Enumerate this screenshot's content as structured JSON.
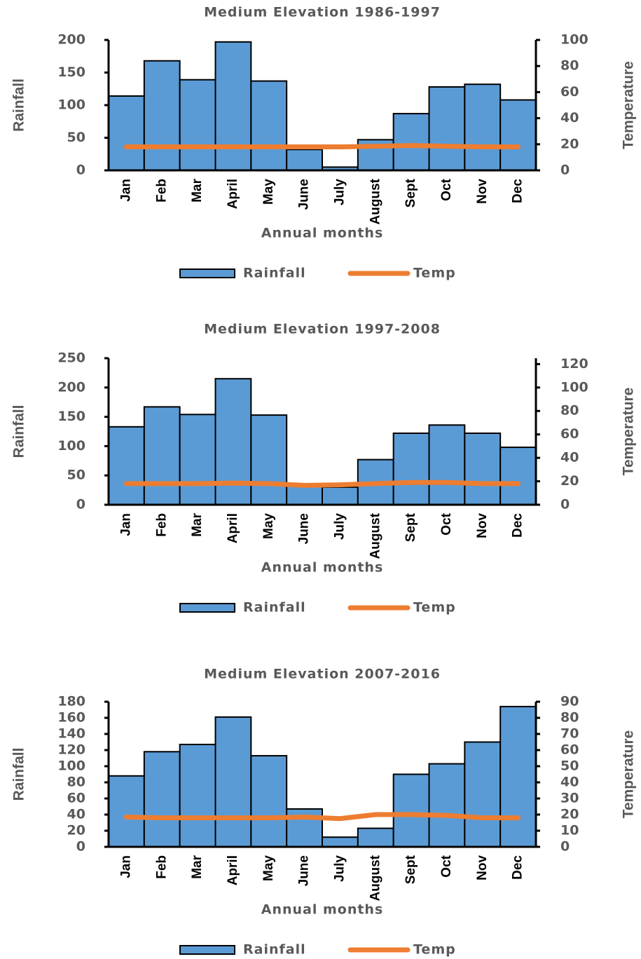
{
  "chart_data": [
    {
      "type": "bar",
      "title": "Medium Elevation 1986-1997",
      "x_label": "Annual months",
      "y_label": "Rainfall",
      "y2_label": "Temperature",
      "categories": [
        "Jan",
        "Feb",
        "Mar",
        "April",
        "May",
        "June",
        "July",
        "August",
        "Sept",
        "Oct",
        "Nov",
        "Dec"
      ],
      "series": [
        {
          "name": "Rainfall",
          "type": "bar",
          "color": "#5b9bd5",
          "values": [
            114,
            168,
            139,
            197,
            137,
            32,
            5,
            47,
            87,
            128,
            132,
            108
          ]
        },
        {
          "name": "Temp",
          "type": "line",
          "axis": "y2",
          "color": "#ed7d31",
          "values": [
            18,
            18,
            18,
            18,
            18,
            18,
            18,
            18.5,
            19,
            18.5,
            18,
            18
          ]
        }
      ],
      "ylim": [
        0,
        200
      ],
      "yticks": [
        0,
        50,
        100,
        150,
        200
      ],
      "y2lim": [
        0,
        100
      ],
      "y2ticks": [
        0,
        20,
        40,
        60,
        80,
        100
      ],
      "legend": "bottom"
    },
    {
      "type": "bar",
      "title": "Medium Elevation 1997-2008",
      "x_label": "Annual months",
      "y_label": "Rainfall",
      "y2_label": "Temperature",
      "categories": [
        "Jan",
        "Feb",
        "Mar",
        "April",
        "May",
        "June",
        "July",
        "August",
        "Sept",
        "Oct",
        "Nov",
        "Dec"
      ],
      "series": [
        {
          "name": "Rainfall",
          "type": "bar",
          "color": "#5b9bd5",
          "values": [
            133,
            167,
            154,
            215,
            153,
            35,
            30,
            77,
            122,
            136,
            122,
            98
          ]
        },
        {
          "name": "Temp",
          "type": "line",
          "axis": "y2",
          "color": "#ed7d31",
          "values": [
            18,
            18,
            18,
            18.5,
            18,
            16.5,
            17,
            18,
            19,
            19,
            18,
            18
          ]
        }
      ],
      "ylim": [
        0,
        250
      ],
      "yticks": [
        0,
        50,
        100,
        150,
        200,
        250
      ],
      "y2lim": [
        0,
        125
      ],
      "y2ticks": [
        0,
        20,
        40,
        60,
        80,
        100,
        120
      ],
      "legend": "bottom"
    },
    {
      "type": "bar",
      "title": "Medium Elevation 2007-2016",
      "x_label": "Annual months",
      "y_label": "Rainfall",
      "y2_label": "Temperature",
      "categories": [
        "Jan",
        "Feb",
        "Mar",
        "April",
        "May",
        "June",
        "July",
        "August",
        "Sept",
        "Oct",
        "Nov",
        "Dec"
      ],
      "series": [
        {
          "name": "Rainfall",
          "type": "bar",
          "color": "#5b9bd5",
          "values": [
            88,
            118,
            127,
            161,
            113,
            47,
            12,
            23,
            90,
            103,
            130,
            174
          ]
        },
        {
          "name": "Temp",
          "type": "line",
          "axis": "y2",
          "color": "#ed7d31",
          "values": [
            18.5,
            18,
            18,
            18,
            18,
            18.5,
            17.5,
            20,
            20,
            19.5,
            18,
            18
          ]
        }
      ],
      "ylim": [
        0,
        180
      ],
      "yticks": [
        0,
        20,
        40,
        60,
        80,
        100,
        120,
        140,
        160,
        180
      ],
      "y2lim": [
        0,
        90
      ],
      "y2ticks": [
        0,
        10,
        20,
        30,
        40,
        50,
        60,
        70,
        80,
        90
      ],
      "legend": "bottom"
    }
  ]
}
